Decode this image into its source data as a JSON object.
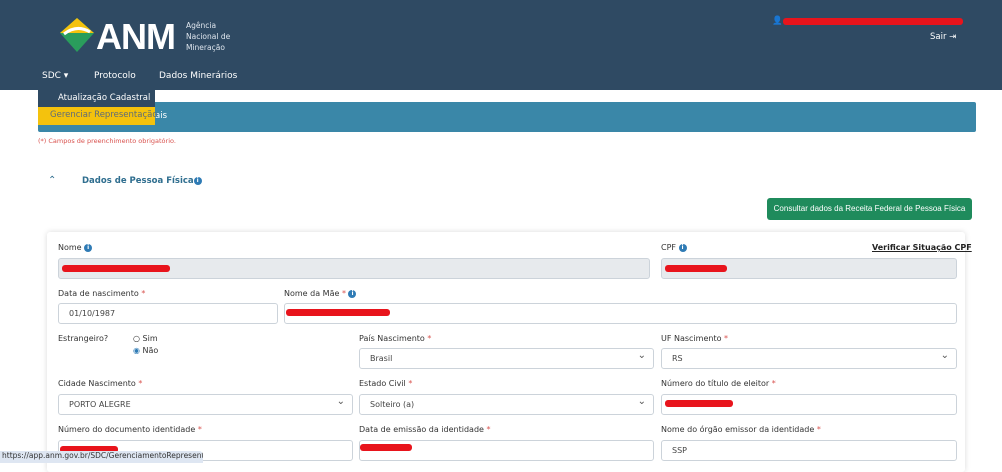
{
  "header": {
    "logo": "ANM",
    "logo_subtitle": [
      "Agência",
      "Nacional de",
      "Mineração"
    ],
    "logout": "Sair",
    "nav": [
      "SDC",
      "Protocolo",
      "Dados Minerários"
    ]
  },
  "dropdown": {
    "items": [
      "Atualização Cadastral",
      "Gerenciar Representação"
    ]
  },
  "panel_title_fragment": "ais",
  "required_note": "(*) Campos de preenchimento obrigatório.",
  "section": {
    "title": "Dados de Pessoa Física",
    "consult_button": "Consultar dados da Receita Federal de Pessoa Física",
    "verify_cpf_link": "Verificar Situação CPF"
  },
  "fields": {
    "nome": {
      "label": "Nome"
    },
    "cpf": {
      "label": "CPF"
    },
    "nascimento": {
      "label": "Data de nascimento",
      "value": "01/10/1987"
    },
    "mae": {
      "label": "Nome da Mãe"
    },
    "estrangeiro": {
      "label": "Estrangeiro?",
      "options": [
        "Sim",
        "Não"
      ],
      "selected": "Não"
    },
    "pais": {
      "label": "País Nascimento",
      "value": "Brasil"
    },
    "uf": {
      "label": "UF Nascimento",
      "value": "RS"
    },
    "cidade": {
      "label": "Cidade Nascimento",
      "value": "PORTO ALEGRE"
    },
    "estado_civil": {
      "label": "Estado Civil",
      "value": "Solteiro (a)"
    },
    "titulo": {
      "label": "Número do título de eleitor"
    },
    "documento": {
      "label": "Número do documento identidade"
    },
    "emissao": {
      "label": "Data de emissão da identidade"
    },
    "orgao": {
      "label": "Nome do órgão emissor da identidade",
      "value": "SSP"
    }
  },
  "status_url": "https://app.anm.gov.br/SDC/GerenciamentoRepresentacao",
  "colors": {
    "header": "#2f4a63",
    "panel": "#3a87a8",
    "button": "#1f8b5c",
    "highlight": "#f4c20d",
    "redaction": "#e8141c"
  }
}
